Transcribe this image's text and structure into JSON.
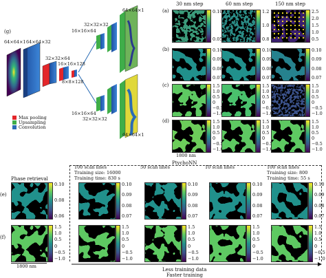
{
  "panel_g": {
    "label": "(g)",
    "layers": [
      "64×64×1",
      "64×64×32",
      "32×32×64",
      "16×16×128",
      "8×8×128",
      "16×16×64",
      "32×32×32",
      "64×64×1",
      "16×16×64",
      "32×32×32",
      "64×64×1"
    ],
    "legend": [
      {
        "label": "Max pooling",
        "color": "#e3262a"
      },
      {
        "label": "Upsampling",
        "color": "#3fae49"
      },
      {
        "label": "Convolution",
        "color": "#2b6cb5"
      }
    ]
  },
  "top_grid": {
    "columns": [
      "30 nm step",
      "60 nm step",
      "150 nm step"
    ],
    "rows": [
      {
        "label": "(a)",
        "ticks": [
          [
            "0.10",
            "0.05"
          ],
          [
            "1.2",
            "1.0",
            "0.8"
          ],
          [
            "2.5",
            "2.0",
            "1.5",
            "1.0",
            "0.5"
          ]
        ]
      },
      {
        "label": "(b)",
        "ticks": [
          [
            "0.10",
            "0.09",
            "0.08",
            "0.07"
          ],
          [
            "0.10",
            "0.09",
            "0.08",
            "0.07"
          ],
          [
            "0.10",
            "0.09",
            "0.08",
            "0.07"
          ]
        ]
      },
      {
        "label": "(c)",
        "ticks": [
          [
            "1.5",
            "1.0",
            "0.5",
            "0",
            "−0.5",
            "−1.0"
          ],
          [
            "1.5",
            "1.0",
            "0.5",
            "0",
            "−0.5",
            "−1.0"
          ],
          [
            "1.5",
            "1.0",
            "0.5",
            "0",
            "−0.5",
            "−1.0"
          ]
        ]
      },
      {
        "label": "(d)",
        "ticks": [
          [
            "1.5",
            "1.0",
            "0.5",
            "0",
            "−0.5",
            "−1.0"
          ],
          [
            "1.5",
            "1.0",
            "0.5",
            "0",
            "−0.5",
            "−1.0"
          ],
          [
            "1.5",
            "1.0",
            "0.5",
            "0",
            "−0.5",
            "−1.0"
          ]
        ]
      }
    ],
    "scale": "1800 nm"
  },
  "bottom": {
    "ptychonn": "PtychoNN",
    "phase_retrieval": "Phase retrieval",
    "columns": [
      {
        "lines": []
      },
      {
        "lines": [
          "100 scan lines",
          "Training size: 16000",
          "Training time: 830 s"
        ]
      },
      {
        "lines": [
          "50 scan lines"
        ]
      },
      {
        "lines": [
          "10 scan lines"
        ]
      },
      {
        "lines": [
          "100 scan lines",
          "Training size: 800",
          "Training time: 55 s"
        ]
      }
    ],
    "rows": [
      {
        "label": "(e)",
        "ticks": [
          "0.10",
          "0.09",
          "0.08",
          "0.07"
        ],
        "ticks_first": [
          "0.10",
          "0.08",
          "0.06"
        ]
      },
      {
        "label": "(f)",
        "ticks": [
          "1.5",
          "1.0",
          "0.5",
          "0",
          "−0.5",
          "−1.0"
        ],
        "ticks_first": [
          "1.5",
          "1.0",
          "0.5",
          "0",
          "−0.5",
          "−1.0"
        ]
      }
    ],
    "scale": "1800 nm",
    "arrow1": "Less training data",
    "arrow2": "Faster training"
  }
}
